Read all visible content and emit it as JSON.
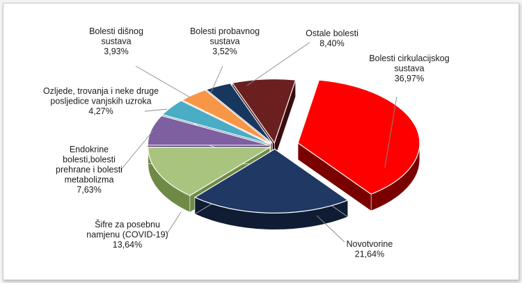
{
  "chart_data": {
    "type": "pie",
    "style": "3d-exploded",
    "title": "",
    "slices": [
      {
        "key": "circ",
        "label_lines": [
          "Bolesti cirkulacijskog",
          "sustava"
        ],
        "value_text": "36,97%",
        "value": 36.97,
        "color": "#ff0000",
        "side_color": "#7a0000"
      },
      {
        "key": "novo",
        "label_lines": [
          "Novotvorine"
        ],
        "value_text": "21,64%",
        "value": 21.64,
        "color": "#1f3864",
        "side_color": "#0f1c33"
      },
      {
        "key": "covid",
        "label_lines": [
          "Šifre za posebnu",
          "namjenu (COVID-19)"
        ],
        "value_text": "13,64%",
        "value": 13.64,
        "color": "#a9c47f",
        "side_color": "#6f8a46"
      },
      {
        "key": "endo",
        "label_lines": [
          "Endokrine",
          "bolesti,bolesti",
          "prehrane i bolesti",
          "metabolizma"
        ],
        "value_text": "7,63%",
        "value": 7.63,
        "color": "#7e5fa0",
        "side_color": "#4a3463"
      },
      {
        "key": "ozlj",
        "label_lines": [
          "Ozljede, trovanja i neke druge",
          "posljedice vanjskih uzroka"
        ],
        "value_text": "4,27%",
        "value": 4.27,
        "color": "#4bacc6",
        "side_color": "#2a6a7c"
      },
      {
        "key": "disno",
        "label_lines": [
          "Bolesti dišnog",
          "sustava"
        ],
        "value_text": "3,93%",
        "value": 3.93,
        "color": "#f79646",
        "side_color": "#a65a1c"
      },
      {
        "key": "probav",
        "label_lines": [
          "Bolesti probavnog",
          "sustava"
        ],
        "value_text": "3,52%",
        "value": 3.52,
        "color": "#17375e",
        "side_color": "#0b1b30"
      },
      {
        "key": "ostale",
        "label_lines": [
          "Ostale bolesti"
        ],
        "value_text": "8,40%",
        "value": 8.4,
        "color": "#6b1f1f",
        "side_color": "#3a0d0d"
      }
    ],
    "legend": "none"
  }
}
